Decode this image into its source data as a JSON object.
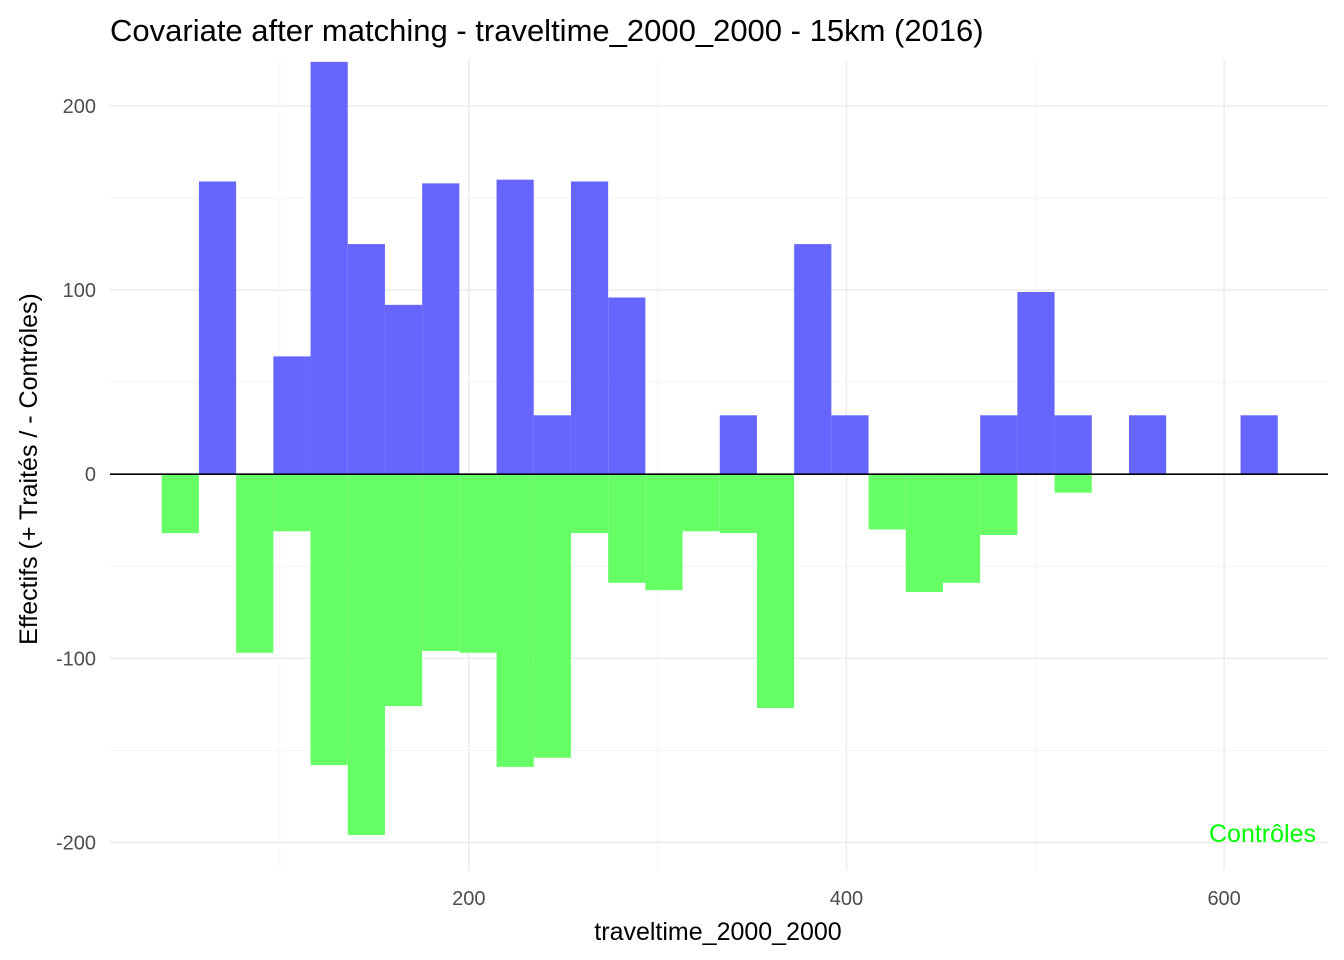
{
  "chart_data": {
    "type": "bar",
    "title": "Covariate after matching - traveltime_2000_2000 - 15km (2016)",
    "xlabel": "traveltime_2000_2000",
    "ylabel": "Effectifs (+ Traités / - Contrôles)",
    "xlim": [
      10,
      655
    ],
    "ylim": [
      -215,
      225
    ],
    "x_ticks": [
      200,
      400,
      600
    ],
    "y_ticks": [
      -200,
      -100,
      0,
      100,
      200
    ],
    "x_tick_labels": [
      "200",
      "400",
      "600"
    ],
    "y_tick_labels": [
      "-200",
      "-100",
      "0",
      "100",
      "200"
    ],
    "grid": true,
    "bin_width": 19.7,
    "bin_starts": [
      37.4,
      57.1,
      76.8,
      96.5,
      116.2,
      135.9,
      155.6,
      175.3,
      195.0,
      214.7,
      234.4,
      254.1,
      273.8,
      293.5,
      313.2,
      332.9,
      352.6,
      372.3,
      392.0,
      411.7,
      431.4,
      451.1,
      470.8,
      490.5,
      510.2,
      529.9,
      549.6,
      569.3,
      589.0,
      608.7
    ],
    "series": [
      {
        "color": "#6666ff",
        "values": [
          0,
          159,
          0,
          64,
          224,
          125,
          92,
          158,
          0,
          160,
          32,
          159,
          96,
          0,
          0,
          32,
          0,
          125,
          32,
          0,
          0,
          0,
          32,
          99,
          32,
          0,
          32,
          0,
          0,
          32
        ]
      },
      {
        "color": "#66ff66",
        "values": [
          -32,
          0,
          -97,
          -31,
          -158,
          -196,
          -126,
          -96,
          -97,
          -159,
          -154,
          -32,
          -59,
          -63,
          -31,
          -32,
          -127,
          0,
          0,
          -30,
          -64,
          -59,
          -33,
          0,
          -10,
          0,
          0,
          0,
          0,
          0
        ]
      }
    ],
    "annotation": {
      "text": "Contrôles",
      "color": "#00ff00",
      "x": 655,
      "y": -195
    }
  }
}
